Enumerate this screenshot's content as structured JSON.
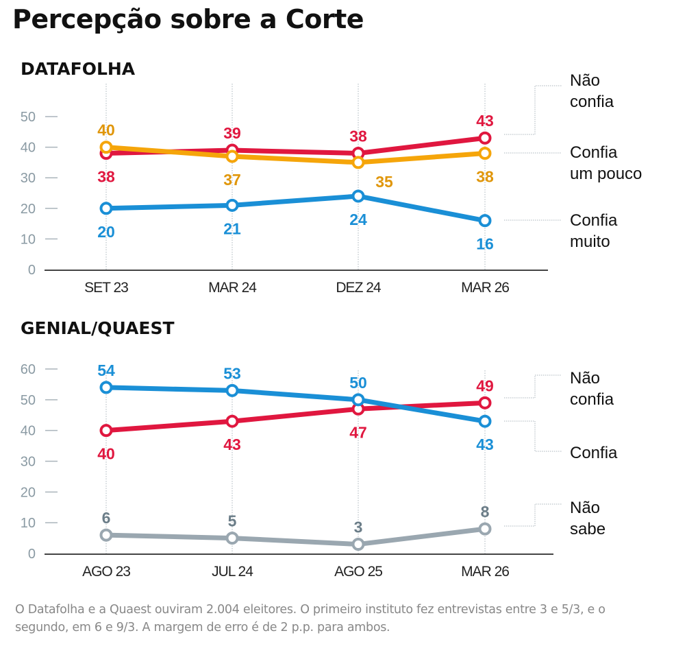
{
  "title": "Percepção sobre a Corte",
  "footnote": "O Datafolha e a Quaest ouviram 2.004 eleitores. O primeiro instituto fez entrevistas entre 3 e 5/3, e o segundo, em 6 e 9/3. A margem de erro é de 2 p.p. para ambos.",
  "colors": {
    "red": "#e0173f",
    "orange": "#f5a50a",
    "orange_label": "#e0960a",
    "blue": "#1a8fd6",
    "gray": "#9aa7b0",
    "gray_label": "#6b7d88",
    "axis_tick": "#8a9aa3",
    "axis_line": "#444444"
  },
  "chart_data": [
    {
      "type": "line",
      "title": "DATAFOLHA",
      "categories": [
        "SET 23",
        "MAR 24",
        "DEZ 24",
        "MAR 26"
      ],
      "ylim": [
        0,
        50
      ],
      "yticks": [
        0,
        10,
        20,
        30,
        40,
        50
      ],
      "grid": false,
      "legend": "right",
      "series": [
        {
          "name": "Não confia",
          "legend_lines": [
            "Não",
            "confia"
          ],
          "color": "red",
          "values": [
            38,
            39,
            38,
            43
          ],
          "label_pos": [
            "below",
            "above",
            "above",
            "above"
          ]
        },
        {
          "name": "Confia um pouco",
          "legend_lines": [
            "Confia",
            "um pouco"
          ],
          "color": "orange",
          "values": [
            40,
            37,
            35,
            38
          ],
          "label_pos": [
            "above",
            "below",
            "below-right",
            "below"
          ]
        },
        {
          "name": "Confia muito",
          "legend_lines": [
            "Confia",
            "muito"
          ],
          "color": "blue",
          "values": [
            20,
            21,
            24,
            16
          ],
          "label_pos": [
            "below",
            "below",
            "below",
            "below"
          ]
        }
      ]
    },
    {
      "type": "line",
      "title": "GENIAL/QUAEST",
      "categories": [
        "AGO 23",
        "JUL 24",
        "AGO 25",
        "MAR 26"
      ],
      "ylim": [
        0,
        60
      ],
      "yticks": [
        0,
        10,
        20,
        30,
        40,
        50,
        60
      ],
      "grid": false,
      "legend": "right",
      "series": [
        {
          "name": "Não confia",
          "legend_lines": [
            "Não",
            "confia"
          ],
          "color": "red",
          "values": [
            40,
            43,
            47,
            49
          ],
          "label_pos": [
            "below",
            "below",
            "below",
            "above"
          ]
        },
        {
          "name": "Confia",
          "legend_lines": [
            "Confia"
          ],
          "color": "blue",
          "values": [
            54,
            53,
            50,
            43
          ],
          "label_pos": [
            "above",
            "above",
            "above",
            "below"
          ]
        },
        {
          "name": "Não sabe",
          "legend_lines": [
            "Não",
            "sabe"
          ],
          "color": "gray",
          "values": [
            6,
            5,
            3,
            8
          ],
          "label_pos": [
            "above",
            "above",
            "above",
            "above"
          ]
        }
      ]
    }
  ]
}
